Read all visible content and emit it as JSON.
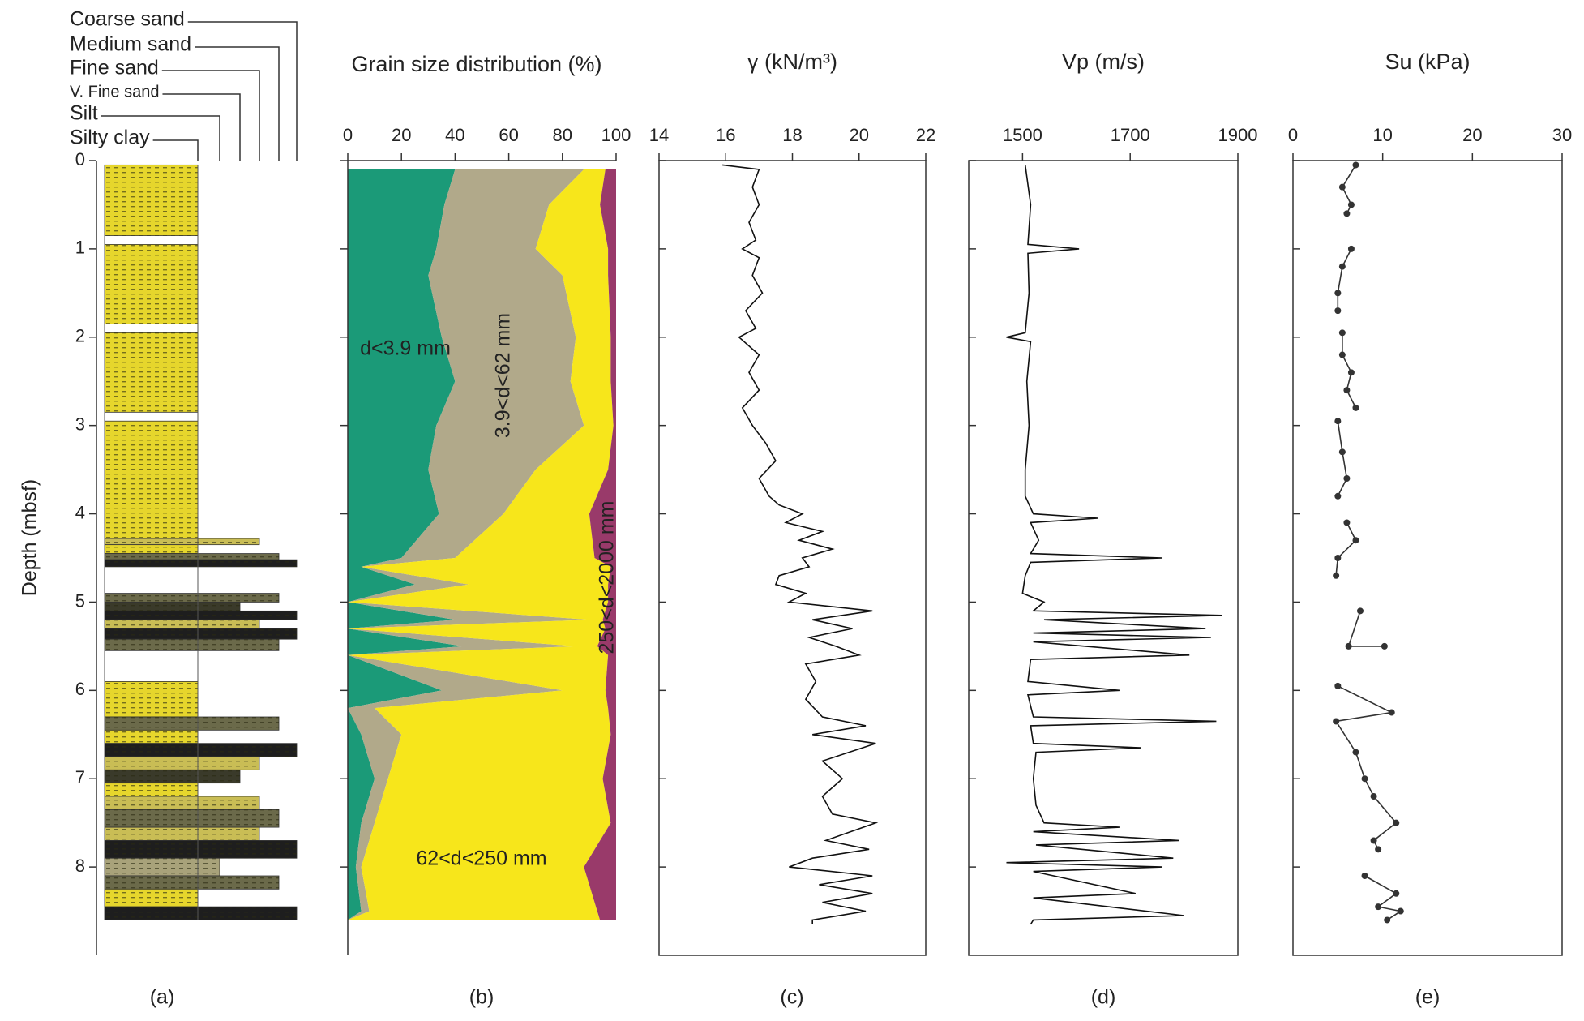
{
  "chart_data": [
    {
      "type": "lithology",
      "label": "(a)",
      "ylabel": "Depth (mbsf)",
      "ylim": [
        0,
        9
      ],
      "yticks": [
        0,
        1,
        2,
        3,
        4,
        5,
        6,
        7,
        8
      ],
      "classes": [
        "Silty clay",
        "Silt",
        "V. Fine sand",
        "Fine sand",
        "Medium sand",
        "Coarse sand"
      ],
      "colors": [
        "#e6d62c",
        "#a8a27a",
        "#3a3a2a",
        "#c9bd55",
        "#6b6a4a",
        "#1e1e1e"
      ],
      "tops": [
        0.05,
        0.95,
        1.95,
        2.95,
        4.28,
        4.35,
        4.45,
        4.52,
        4.9,
        5.0,
        5.1,
        5.2,
        5.3,
        5.42,
        5.9,
        6.3,
        6.45,
        6.6,
        6.75,
        6.9,
        7.05,
        7.2,
        7.35,
        7.55,
        7.7,
        7.9,
        8.1,
        8.25,
        8.45
      ],
      "bottoms": [
        0.85,
        1.85,
        2.85,
        4.28,
        4.35,
        4.45,
        4.52,
        4.6,
        5.0,
        5.1,
        5.2,
        5.3,
        5.42,
        5.55,
        6.3,
        6.45,
        6.6,
        6.75,
        6.9,
        7.05,
        7.2,
        7.35,
        7.55,
        7.7,
        7.9,
        8.1,
        8.25,
        8.45,
        8.6
      ],
      "class_of": [
        0,
        0,
        0,
        0,
        3,
        0,
        4,
        5,
        4,
        2,
        5,
        3,
        5,
        4,
        0,
        4,
        0,
        5,
        3,
        2,
        0,
        3,
        4,
        3,
        5,
        1,
        4,
        0,
        5
      ]
    },
    {
      "type": "stacked_area",
      "label": "(b)",
      "title": "Grain size distribution (%)",
      "xlim": [
        0,
        100
      ],
      "xticks": [
        0,
        20,
        40,
        60,
        80,
        100
      ],
      "y": [
        0.1,
        0.5,
        1,
        1.3,
        2,
        2.5,
        3,
        3.5,
        4,
        4.5,
        4.6,
        4.8,
        5,
        5.2,
        5.3,
        5.5,
        5.6,
        6,
        6.2,
        6.5,
        7,
        7.5,
        8,
        8.5,
        8.6
      ],
      "series": [
        {
          "name": "d<3.9 mm",
          "color": "#1b9a78",
          "values": [
            40,
            36,
            33,
            30,
            35,
            40,
            33,
            30,
            34,
            20,
            5,
            25,
            0,
            40,
            0,
            43,
            0,
            35,
            0,
            5,
            10,
            5,
            3,
            5,
            0
          ]
        },
        {
          "name": "3.9<d<62 mm",
          "color": "#b1a98a",
          "values": [
            48,
            39,
            37,
            50,
            50,
            43,
            55,
            40,
            24,
            20,
            0,
            20,
            0,
            50,
            0,
            42,
            0,
            45,
            10,
            15,
            5,
            5,
            2,
            3,
            0
          ]
        },
        {
          "name": "62<d<250 mm",
          "color": "#f7e61b",
          "values": [
            8,
            19,
            27,
            17,
            13,
            15,
            11,
            27,
            32,
            52,
            93,
            52,
            97,
            5,
            96,
            8,
            97,
            16,
            87,
            78,
            80,
            88,
            83,
            85,
            94
          ]
        },
        {
          "name": "250<d<2000 mm",
          "color": "#993a6a",
          "values": [
            4,
            6,
            3,
            3,
            2,
            2,
            1,
            3,
            10,
            8,
            2,
            3,
            3,
            5,
            4,
            7,
            3,
            4,
            3,
            2,
            5,
            2,
            12,
            7,
            6
          ]
        }
      ]
    },
    {
      "type": "line",
      "label": "(c)",
      "title": "γ (kN/m³)",
      "xlim": [
        14,
        22
      ],
      "xticks": [
        14,
        16,
        18,
        20,
        22
      ],
      "color": "#111111",
      "y": [
        0.05,
        0.1,
        0.3,
        0.5,
        0.7,
        0.9,
        1.0,
        1.1,
        1.3,
        1.5,
        1.7,
        1.9,
        2.0,
        2.2,
        2.4,
        2.6,
        2.8,
        3.0,
        3.2,
        3.4,
        3.6,
        3.8,
        3.9,
        4.0,
        4.1,
        4.2,
        4.3,
        4.4,
        4.5,
        4.6,
        4.7,
        4.8,
        4.9,
        5.0,
        5.1,
        5.2,
        5.3,
        5.4,
        5.5,
        5.6,
        5.7,
        5.9,
        6.1,
        6.3,
        6.4,
        6.5,
        6.6,
        6.8,
        7.0,
        7.2,
        7.4,
        7.5,
        7.7,
        7.8,
        7.9,
        8.0,
        8.1,
        8.2,
        8.3,
        8.4,
        8.5,
        8.6,
        8.65
      ],
      "values": [
        15.9,
        17.0,
        16.8,
        17.0,
        16.7,
        16.9,
        16.5,
        17.0,
        16.8,
        17.1,
        16.6,
        16.9,
        16.4,
        17.0,
        16.7,
        17.0,
        16.5,
        16.8,
        17.2,
        17.5,
        17.0,
        17.3,
        17.6,
        18.3,
        17.8,
        18.9,
        18.2,
        19.2,
        18.3,
        18.5,
        17.6,
        17.5,
        18.4,
        17.9,
        20.4,
        18.6,
        19.8,
        18.5,
        19.3,
        20.0,
        18.4,
        18.7,
        18.4,
        18.9,
        20.2,
        18.6,
        20.5,
        18.9,
        19.5,
        18.9,
        19.2,
        20.5,
        19.0,
        20.3,
        18.6,
        17.9,
        20.4,
        18.8,
        20.4,
        18.9,
        20.2,
        18.6,
        18.6
      ]
    },
    {
      "type": "line",
      "label": "(d)",
      "title": "Vp (m/s)",
      "xlim": [
        1400,
        1900
      ],
      "xticks": [
        1500,
        1700,
        1900
      ],
      "color": "#111111",
      "y": [
        0.05,
        0.5,
        0.95,
        1.0,
        1.05,
        1.5,
        1.95,
        2.0,
        2.05,
        2.5,
        3.0,
        3.5,
        3.8,
        4.0,
        4.05,
        4.1,
        4.3,
        4.45,
        4.5,
        4.55,
        4.7,
        4.9,
        5.0,
        5.1,
        5.15,
        5.2,
        5.3,
        5.35,
        5.4,
        5.45,
        5.6,
        5.65,
        5.9,
        6.0,
        6.05,
        6.3,
        6.35,
        6.4,
        6.6,
        6.65,
        6.7,
        7.0,
        7.3,
        7.5,
        7.55,
        7.6,
        7.7,
        7.75,
        7.9,
        7.95,
        8.0,
        8.05,
        8.3,
        8.35,
        8.55,
        8.6,
        8.65
      ],
      "values": [
        1505,
        1515,
        1510,
        1605,
        1510,
        1512,
        1505,
        1470,
        1515,
        1508,
        1512,
        1505,
        1505,
        1520,
        1640,
        1515,
        1530,
        1515,
        1760,
        1515,
        1505,
        1500,
        1540,
        1520,
        1870,
        1540,
        1840,
        1520,
        1850,
        1520,
        1810,
        1515,
        1510,
        1680,
        1510,
        1520,
        1860,
        1515,
        1520,
        1720,
        1525,
        1520,
        1525,
        1540,
        1680,
        1520,
        1790,
        1525,
        1780,
        1470,
        1760,
        1520,
        1710,
        1520,
        1800,
        1520,
        1515
      ]
    },
    {
      "type": "line_points",
      "label": "(e)",
      "title": "Su  (kPa)",
      "xlim": [
        0,
        30
      ],
      "xticks": [
        0,
        10,
        20,
        30
      ],
      "color": "#333333",
      "y": [
        0.05,
        0.3,
        0.5,
        0.6,
        null,
        1.0,
        1.2,
        1.5,
        1.7,
        null,
        1.95,
        2.2,
        2.4,
        2.6,
        2.8,
        null,
        2.95,
        3.3,
        3.6,
        3.8,
        null,
        4.1,
        4.3,
        4.5,
        4.7,
        null,
        5.1,
        5.5,
        5.5,
        null,
        5.95,
        6.25,
        6.35,
        6.7,
        7.0,
        7.2,
        7.5,
        7.7,
        7.8,
        null,
        8.1,
        8.3,
        8.45,
        8.5,
        8.6
      ],
      "values": [
        7,
        5.5,
        6.5,
        6,
        null,
        6.5,
        5.5,
        5,
        5,
        null,
        5.5,
        5.5,
        6.5,
        6,
        7,
        null,
        5,
        5.5,
        6,
        5,
        null,
        6,
        7,
        5,
        4.8,
        null,
        7.5,
        6.2,
        10.2,
        null,
        5,
        11,
        4.8,
        7,
        8,
        9,
        11.5,
        9,
        9.5,
        null,
        8,
        11.5,
        9.5,
        12,
        10.5
      ]
    }
  ]
}
